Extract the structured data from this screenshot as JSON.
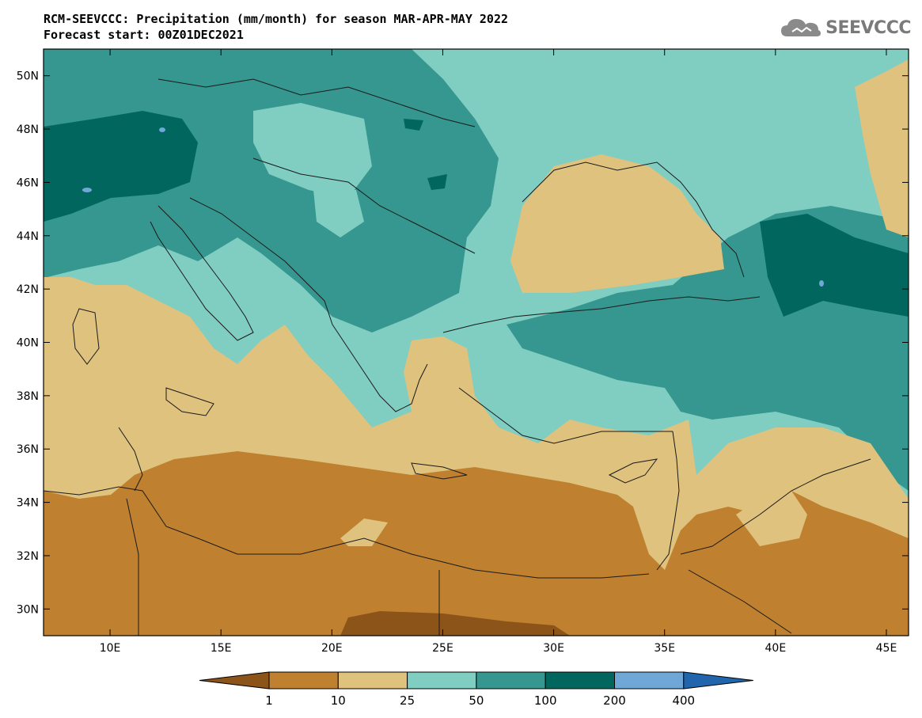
{
  "title": {
    "line1": "RCM-SEEVCCC: Precipitation (mm/month) for season MAR-APR-MAY 2022",
    "line2": "Forecast start: 00Z01DEC2021"
  },
  "logo": {
    "text": "SEEVCCC",
    "icon": "cloud-icon"
  },
  "map": {
    "lon_range": [
      7,
      46
    ],
    "lat_range": [
      29,
      51
    ],
    "lon_ticks": [
      {
        "value": 10,
        "label": "10E"
      },
      {
        "value": 15,
        "label": "15E"
      },
      {
        "value": 20,
        "label": "20E"
      },
      {
        "value": 25,
        "label": "25E"
      },
      {
        "value": 30,
        "label": "30E"
      },
      {
        "value": 35,
        "label": "35E"
      },
      {
        "value": 40,
        "label": "40E"
      },
      {
        "value": 45,
        "label": "45E"
      }
    ],
    "lat_ticks": [
      {
        "value": 30,
        "label": "30N"
      },
      {
        "value": 32,
        "label": "32N"
      },
      {
        "value": 34,
        "label": "34N"
      },
      {
        "value": 36,
        "label": "36N"
      },
      {
        "value": 38,
        "label": "38N"
      },
      {
        "value": 40,
        "label": "40N"
      },
      {
        "value": 42,
        "label": "42N"
      },
      {
        "value": 44,
        "label": "44N"
      },
      {
        "value": 46,
        "label": "46N"
      },
      {
        "value": 48,
        "label": "48N"
      },
      {
        "value": 50,
        "label": "50N"
      }
    ]
  },
  "colorbar": {
    "colors": {
      "lt1": "#8c5418",
      "c1_10": "#bf8030",
      "c10_25": "#dfc27e",
      "c25_50": "#80cdc1",
      "c50_100": "#35978f",
      "c100_200": "#01665e",
      "c200_400": "#6fa8d6",
      "gt400": "#2166ac"
    },
    "boundaries": [
      "1",
      "10",
      "25",
      "50",
      "100",
      "200",
      "400"
    ]
  }
}
